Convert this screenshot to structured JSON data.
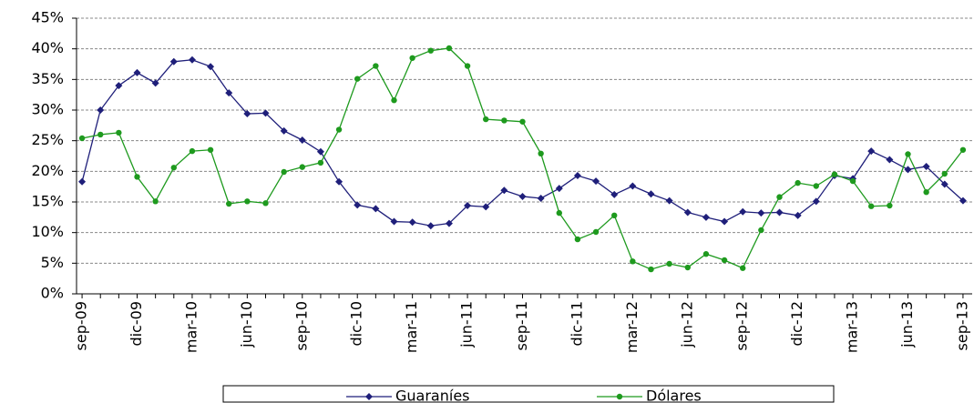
{
  "chart_data": {
    "type": "line",
    "categories": [
      "sep-09",
      null,
      null,
      "dic-09",
      null,
      null,
      "mar-10",
      null,
      null,
      "jun-10",
      null,
      null,
      "sep-10",
      null,
      null,
      "dic-10",
      null,
      null,
      "mar-11",
      null,
      null,
      "jun-11",
      null,
      null,
      "sep-11",
      null,
      null,
      "dic-11",
      null,
      null,
      "mar-12",
      null,
      null,
      "jun-12",
      null,
      null,
      "sep-12",
      null,
      null,
      "dic-12",
      null,
      null,
      "mar-13",
      null,
      null,
      "jun-13",
      null,
      null,
      "sep-13"
    ],
    "series": [
      {
        "name": "Guaraníes",
        "color": "#1f1f7a",
        "marker": "diamond",
        "values": [
          18.3,
          30,
          34,
          36.1,
          34.4,
          37.9,
          38.2,
          37.1,
          32.8,
          29.4,
          29.5,
          26.6,
          25.1,
          23.2,
          18.3,
          14.5,
          13.9,
          11.8,
          11.7,
          11.1,
          11.5,
          14.4,
          14.2,
          16.9,
          15.9,
          15.6,
          17.2,
          19.3,
          18.4,
          16.2,
          17.6,
          16.3,
          15.2,
          13.3,
          12.5,
          11.8,
          13.4,
          13.2,
          13.3,
          12.8,
          15.1,
          19.3,
          18.8,
          23.3,
          21.9,
          20.3,
          20.8,
          17.9,
          15.2
        ]
      },
      {
        "name": "Dólares",
        "color": "#1e9a1e",
        "marker": "circle",
        "values": [
          25.4,
          26.0,
          26.3,
          19.1,
          15.1,
          20.6,
          23.3,
          23.5,
          14.7,
          15.1,
          14.8,
          19.9,
          20.7,
          21.4,
          26.8,
          35.1,
          37.2,
          31.6,
          38.5,
          39.7,
          40.1,
          37.2,
          28.5,
          28.3,
          28.1,
          22.9,
          13.2,
          8.9,
          10.1,
          12.8,
          5.3,
          4.0,
          4.9,
          4.3,
          6.5,
          5.5,
          4.2,
          10.4,
          15.8,
          18.1,
          17.6,
          19.5,
          18.4,
          14.3,
          14.4,
          22.8,
          16.6,
          19.6,
          23.5
        ]
      }
    ],
    "ylim": [
      0,
      45
    ],
    "yticks": [
      {
        "value": 0,
        "label": "0%"
      },
      {
        "value": 5,
        "label": "5%"
      },
      {
        "value": 10,
        "label": "10%"
      },
      {
        "value": 15,
        "label": "15%"
      },
      {
        "value": 20,
        "label": "20%"
      },
      {
        "value": 25,
        "label": "25%"
      },
      {
        "value": 30,
        "label": "30%"
      },
      {
        "value": 35,
        "label": "35%"
      },
      {
        "value": 40,
        "label": "40%"
      },
      {
        "value": 45,
        "label": "45%"
      }
    ],
    "grid": true,
    "legend": "bottom"
  }
}
